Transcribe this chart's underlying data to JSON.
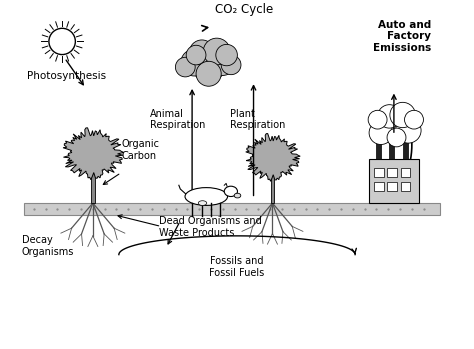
{
  "background_color": "#ffffff",
  "text_color": "#000000",
  "labels": {
    "co2_cycle": "CO₂ Cycle",
    "photosynthesis": "Photosynthesis",
    "organic_carbon": "Organic\nCarbon",
    "animal_respiration": "Animal\nRespiration",
    "plant_respiration": "Plant\nRespiration",
    "dead_organisms": "Dead Organisms and\nWaste Products",
    "decay_organisms": "Decay\nOrganisms",
    "fossils": "Fossils and\nFossil Fuels",
    "auto_factory": "Auto and\nFactory\nEmissions"
  },
  "figsize": [
    4.74,
    3.49
  ],
  "dpi": 100,
  "ground_color": "#aaaaaa",
  "tree_crown_color": "#aaaaaa",
  "cloud_color": "#bbbbbb",
  "factory_color": "#aaaaaa",
  "chimney_color": "#333333"
}
